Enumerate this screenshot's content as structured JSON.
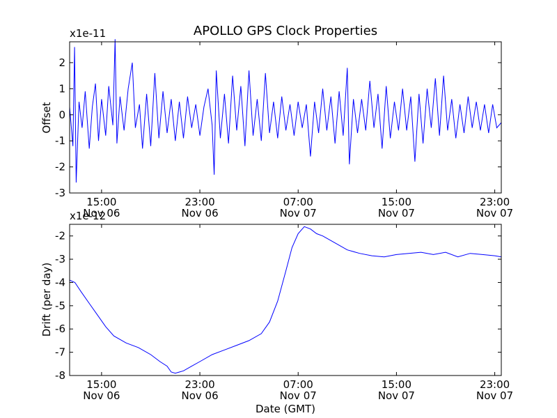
{
  "colors": {
    "line": "#0000ff",
    "axes": "#000000",
    "background": "#ffffff"
  },
  "chart_data": [
    {
      "type": "line",
      "title": "APOLLO GPS Clock Properties",
      "xlabel": "",
      "ylabel": "Offset",
      "multiplier": "x1e-11",
      "ylim": [
        -3,
        2.8
      ],
      "yticks": [
        {
          "value": 2,
          "label": "2"
        },
        {
          "value": 1,
          "label": "1"
        },
        {
          "value": 0,
          "label": "0"
        },
        {
          "value": -1,
          "label": "-1"
        },
        {
          "value": -2,
          "label": "-2"
        },
        {
          "value": -3,
          "label": "-3"
        }
      ],
      "xlim": [
        "2010-11-06 12:24",
        "2010-11-07 23:32"
      ],
      "xticks": [
        {
          "value": "2010-11-06 15:00",
          "label": "15:00",
          "label2": "Nov 06"
        },
        {
          "value": "2010-11-06 23:00",
          "label": "23:00",
          "label2": "Nov 06"
        },
        {
          "value": "2010-11-07 07:00",
          "label": "07:00",
          "label2": "Nov 07"
        },
        {
          "value": "2010-11-07 15:00",
          "label": "15:00",
          "label2": "Nov 07"
        },
        {
          "value": "2010-11-07 23:00",
          "label": "23:00",
          "label2": "Nov 07"
        }
      ],
      "series": [
        {
          "values": [
            [
              "2010-11-06 12:24",
              0.3
            ],
            [
              "2010-11-06 12:40",
              -1.2
            ],
            [
              "2010-11-06 12:48",
              2.6
            ],
            [
              "2010-11-06 12:56",
              -2.6
            ],
            [
              "2010-11-06 13:10",
              0.5
            ],
            [
              "2010-11-06 13:25",
              -0.5
            ],
            [
              "2010-11-06 13:40",
              0.9
            ],
            [
              "2010-11-06 14:00",
              -1.3
            ],
            [
              "2010-11-06 14:15",
              0.3
            ],
            [
              "2010-11-06 14:30",
              1.2
            ],
            [
              "2010-11-06 14:45",
              -1.0
            ],
            [
              "2010-11-06 15:00",
              0.6
            ],
            [
              "2010-11-06 15:20",
              -0.8
            ],
            [
              "2010-11-06 15:35",
              1.1
            ],
            [
              "2010-11-06 15:55",
              -0.4
            ],
            [
              "2010-11-06 16:06",
              2.9
            ],
            [
              "2010-11-06 16:15",
              -1.1
            ],
            [
              "2010-11-06 16:30",
              0.7
            ],
            [
              "2010-11-06 16:50",
              -0.6
            ],
            [
              "2010-11-06 17:10",
              1.0
            ],
            [
              "2010-11-06 17:30",
              2.0
            ],
            [
              "2010-11-06 17:45",
              -0.5
            ],
            [
              "2010-11-06 18:05",
              0.4
            ],
            [
              "2010-11-06 18:20",
              -1.3
            ],
            [
              "2010-11-06 18:40",
              0.8
            ],
            [
              "2010-11-06 19:00",
              -1.2
            ],
            [
              "2010-11-06 19:20",
              1.6
            ],
            [
              "2010-11-06 19:40",
              -0.9
            ],
            [
              "2010-11-06 20:00",
              0.9
            ],
            [
              "2010-11-06 20:20",
              -0.7
            ],
            [
              "2010-11-06 20:40",
              0.6
            ],
            [
              "2010-11-06 21:00",
              -1.0
            ],
            [
              "2010-11-06 21:20",
              0.5
            ],
            [
              "2010-11-06 21:40",
              -0.9
            ],
            [
              "2010-11-06 22:00",
              0.7
            ],
            [
              "2010-11-06 22:20",
              -0.5
            ],
            [
              "2010-11-06 22:40",
              0.4
            ],
            [
              "2010-11-06 23:00",
              -0.8
            ],
            [
              "2010-11-06 23:20",
              0.3
            ],
            [
              "2010-11-06 23:40",
              1.0
            ],
            [
              "2010-11-07 00:00",
              -0.4
            ],
            [
              "2010-11-07 00:10",
              -2.3
            ],
            [
              "2010-11-07 00:20",
              1.7
            ],
            [
              "2010-11-07 00:40",
              -0.9
            ],
            [
              "2010-11-07 01:00",
              0.8
            ],
            [
              "2010-11-07 01:20",
              -1.1
            ],
            [
              "2010-11-07 01:40",
              1.5
            ],
            [
              "2010-11-07 02:00",
              -0.6
            ],
            [
              "2010-11-07 02:20",
              1.1
            ],
            [
              "2010-11-07 02:40",
              -1.2
            ],
            [
              "2010-11-07 03:00",
              1.7
            ],
            [
              "2010-11-07 03:20",
              -0.8
            ],
            [
              "2010-11-07 03:40",
              0.6
            ],
            [
              "2010-11-07 04:00",
              -1.0
            ],
            [
              "2010-11-07 04:20",
              1.6
            ],
            [
              "2010-11-07 04:40",
              -0.7
            ],
            [
              "2010-11-07 05:00",
              0.5
            ],
            [
              "2010-11-07 05:20",
              -0.9
            ],
            [
              "2010-11-07 05:40",
              0.7
            ],
            [
              "2010-11-07 06:00",
              -0.6
            ],
            [
              "2010-11-07 06:20",
              0.4
            ],
            [
              "2010-11-07 06:40",
              -0.8
            ],
            [
              "2010-11-07 07:00",
              0.5
            ],
            [
              "2010-11-07 07:20",
              -0.5
            ],
            [
              "2010-11-07 07:40",
              0.4
            ],
            [
              "2010-11-07 08:00",
              -1.6
            ],
            [
              "2010-11-07 08:20",
              0.5
            ],
            [
              "2010-11-07 08:40",
              -0.7
            ],
            [
              "2010-11-07 09:00",
              1.0
            ],
            [
              "2010-11-07 09:20",
              -0.6
            ],
            [
              "2010-11-07 09:40",
              0.7
            ],
            [
              "2010-11-07 10:00",
              -1.1
            ],
            [
              "2010-11-07 10:20",
              0.9
            ],
            [
              "2010-11-07 10:40",
              -0.8
            ],
            [
              "2010-11-07 11:00",
              1.8
            ],
            [
              "2010-11-07 11:10",
              -1.9
            ],
            [
              "2010-11-07 11:30",
              0.6
            ],
            [
              "2010-11-07 11:50",
              -0.7
            ],
            [
              "2010-11-07 12:10",
              0.6
            ],
            [
              "2010-11-07 12:30",
              -0.6
            ],
            [
              "2010-11-07 12:50",
              1.3
            ],
            [
              "2010-11-07 13:10",
              -0.5
            ],
            [
              "2010-11-07 13:30",
              0.8
            ],
            [
              "2010-11-07 13:50",
              -1.3
            ],
            [
              "2010-11-07 14:10",
              1.1
            ],
            [
              "2010-11-07 14:30",
              -0.9
            ],
            [
              "2010-11-07 14:50",
              0.5
            ],
            [
              "2010-11-07 15:10",
              -0.6
            ],
            [
              "2010-11-07 15:30",
              1.0
            ],
            [
              "2010-11-07 15:50",
              -0.6
            ],
            [
              "2010-11-07 16:10",
              0.7
            ],
            [
              "2010-11-07 16:30",
              -1.8
            ],
            [
              "2010-11-07 16:50",
              0.8
            ],
            [
              "2010-11-07 17:10",
              -1.1
            ],
            [
              "2010-11-07 17:30",
              1.0
            ],
            [
              "2010-11-07 17:50",
              -0.5
            ],
            [
              "2010-11-07 18:10",
              1.4
            ],
            [
              "2010-11-07 18:30",
              -0.8
            ],
            [
              "2010-11-07 18:50",
              1.5
            ],
            [
              "2010-11-07 19:10",
              -0.6
            ],
            [
              "2010-11-07 19:30",
              0.6
            ],
            [
              "2010-11-07 19:50",
              -0.9
            ],
            [
              "2010-11-07 20:10",
              0.4
            ],
            [
              "2010-11-07 20:30",
              -0.7
            ],
            [
              "2010-11-07 20:50",
              0.7
            ],
            [
              "2010-11-07 21:10",
              -0.5
            ],
            [
              "2010-11-07 21:30",
              0.5
            ],
            [
              "2010-11-07 21:50",
              -0.6
            ],
            [
              "2010-11-07 22:10",
              0.4
            ],
            [
              "2010-11-07 22:30",
              -0.7
            ],
            [
              "2010-11-07 22:50",
              0.4
            ],
            [
              "2010-11-07 23:10",
              -0.5
            ],
            [
              "2010-11-07 23:32",
              -0.3
            ]
          ]
        }
      ]
    },
    {
      "type": "line",
      "title": "",
      "xlabel": "Date (GMT)",
      "ylabel": "Drift (per day)",
      "multiplier": "x1e-12",
      "ylim": [
        -8,
        -1.5
      ],
      "yticks": [
        {
          "value": -2,
          "label": "-2"
        },
        {
          "value": -3,
          "label": "-3"
        },
        {
          "value": -4,
          "label": "-4"
        },
        {
          "value": -5,
          "label": "-5"
        },
        {
          "value": -6,
          "label": "-6"
        },
        {
          "value": -7,
          "label": "-7"
        },
        {
          "value": -8,
          "label": "-8"
        }
      ],
      "xlim": [
        "2010-11-06 12:24",
        "2010-11-07 23:32"
      ],
      "xticks": [
        {
          "value": "2010-11-06 15:00",
          "label": "15:00",
          "label2": "Nov 06"
        },
        {
          "value": "2010-11-06 23:00",
          "label": "23:00",
          "label2": "Nov 06"
        },
        {
          "value": "2010-11-07 07:00",
          "label": "07:00",
          "label2": "Nov 07"
        },
        {
          "value": "2010-11-07 15:00",
          "label": "15:00",
          "label2": "Nov 07"
        },
        {
          "value": "2010-11-07 23:00",
          "label": "23:00",
          "label2": "Nov 07"
        }
      ],
      "series": [
        {
          "values": [
            [
              "2010-11-06 12:24",
              -3.9
            ],
            [
              "2010-11-06 12:50",
              -4.0
            ],
            [
              "2010-11-06 13:20",
              -4.4
            ],
            [
              "2010-11-06 14:00",
              -4.9
            ],
            [
              "2010-11-06 14:40",
              -5.4
            ],
            [
              "2010-11-06 15:20",
              -5.9
            ],
            [
              "2010-11-06 16:00",
              -6.3
            ],
            [
              "2010-11-06 17:00",
              -6.6
            ],
            [
              "2010-11-06 18:00",
              -6.8
            ],
            [
              "2010-11-06 19:00",
              -7.1
            ],
            [
              "2010-11-06 19:45",
              -7.4
            ],
            [
              "2010-11-06 20:20",
              -7.6
            ],
            [
              "2010-11-06 20:40",
              -7.85
            ],
            [
              "2010-11-06 21:00",
              -7.9
            ],
            [
              "2010-11-06 21:40",
              -7.8
            ],
            [
              "2010-11-06 22:20",
              -7.6
            ],
            [
              "2010-11-06 23:00",
              -7.4
            ],
            [
              "2010-11-07 00:00",
              -7.1
            ],
            [
              "2010-11-07 01:00",
              -6.9
            ],
            [
              "2010-11-07 02:00",
              -6.7
            ],
            [
              "2010-11-07 03:00",
              -6.5
            ],
            [
              "2010-11-07 04:00",
              -6.2
            ],
            [
              "2010-11-07 04:40",
              -5.7
            ],
            [
              "2010-11-07 05:20",
              -4.8
            ],
            [
              "2010-11-07 06:00",
              -3.5
            ],
            [
              "2010-11-07 06:30",
              -2.5
            ],
            [
              "2010-11-07 07:00",
              -1.9
            ],
            [
              "2010-11-07 07:30",
              -1.6
            ],
            [
              "2010-11-07 08:00",
              -1.7
            ],
            [
              "2010-11-07 08:30",
              -1.9
            ],
            [
              "2010-11-07 09:00",
              -2.0
            ],
            [
              "2010-11-07 10:00",
              -2.3
            ],
            [
              "2010-11-07 11:00",
              -2.6
            ],
            [
              "2010-11-07 12:00",
              -2.75
            ],
            [
              "2010-11-07 13:00",
              -2.85
            ],
            [
              "2010-11-07 14:00",
              -2.9
            ],
            [
              "2010-11-07 15:00",
              -2.8
            ],
            [
              "2010-11-07 16:00",
              -2.75
            ],
            [
              "2010-11-07 17:00",
              -2.7
            ],
            [
              "2010-11-07 18:00",
              -2.8
            ],
            [
              "2010-11-07 19:00",
              -2.7
            ],
            [
              "2010-11-07 20:00",
              -2.9
            ],
            [
              "2010-11-07 21:00",
              -2.75
            ],
            [
              "2010-11-07 22:00",
              -2.8
            ],
            [
              "2010-11-07 23:00",
              -2.85
            ],
            [
              "2010-11-07 23:32",
              -2.9
            ]
          ]
        }
      ]
    }
  ]
}
